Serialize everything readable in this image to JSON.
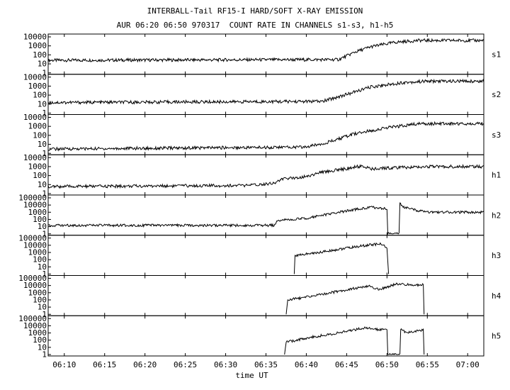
{
  "title_line1": "INTERBALL-Tail RF15-I HARD/SOFT X-RAY EMISSION",
  "title_line2": "AUR 06:20 06:50 970317  COUNT RATE IN CHANNELS s1-s3, h1-h5",
  "chart_data": {
    "type": "line",
    "title": "INTERBALL-Tail RF15-I HARD/SOFT X-RAY EMISSION",
    "subtitle": "AUR 06:20 06:50 970317  COUNT RATE IN CHANNELS s1-s3, h1-h5",
    "xlabel": "time UT",
    "x_ticks": [
      "06:10",
      "06:15",
      "06:20",
      "06:25",
      "06:30",
      "06:35",
      "06:40",
      "06:45",
      "06:50",
      "06:55",
      "07:00"
    ],
    "xlim": [
      "06:08",
      "07:02"
    ],
    "yscale": "log",
    "panels": [
      {
        "name": "s1",
        "y_ticks": [
          "10000",
          "1000",
          "100",
          "10",
          "1"
        ],
        "ylim": [
          1,
          10000
        ],
        "points": [
          [
            "06:08",
            25
          ],
          [
            "06:44",
            30
          ],
          [
            "06:46",
            200
          ],
          [
            "06:48",
            800
          ],
          [
            "06:51",
            2500
          ],
          [
            "06:54",
            4000
          ],
          [
            "07:02",
            4000
          ]
        ]
      },
      {
        "name": "s2",
        "y_ticks": [
          "10000",
          "1000",
          "100",
          "10",
          "1"
        ],
        "ylim": [
          1,
          10000
        ],
        "points": [
          [
            "06:08",
            15
          ],
          [
            "06:42",
            20
          ],
          [
            "06:45",
            120
          ],
          [
            "06:48",
            800
          ],
          [
            "06:52",
            2500
          ],
          [
            "06:55",
            3500
          ],
          [
            "07:02",
            3500
          ]
        ]
      },
      {
        "name": "s3",
        "y_ticks": [
          "10000",
          "1000",
          "100",
          "10",
          "1"
        ],
        "ylim": [
          1,
          10000
        ],
        "points": [
          [
            "06:08",
            3
          ],
          [
            "06:40",
            5
          ],
          [
            "06:43",
            20
          ],
          [
            "06:46",
            150
          ],
          [
            "06:50",
            700
          ],
          [
            "06:54",
            2000
          ],
          [
            "07:02",
            2000
          ]
        ]
      },
      {
        "name": "h1",
        "y_ticks": [
          "10000",
          "1000",
          "100",
          "10",
          "1"
        ],
        "ylim": [
          1,
          10000
        ],
        "points": [
          [
            "06:08",
            6
          ],
          [
            "06:33",
            8
          ],
          [
            "06:36",
            15
          ],
          [
            "06:37",
            40
          ],
          [
            "06:40",
            80
          ],
          [
            "06:42",
            250
          ],
          [
            "06:45",
            600
          ],
          [
            "06:47",
            1200
          ],
          [
            "06:48",
            500
          ],
          [
            "06:50",
            700
          ],
          [
            "06:55",
            1000
          ],
          [
            "07:02",
            1000
          ]
        ]
      },
      {
        "name": "h2",
        "y_ticks": [
          "100000",
          "10000",
          "1000",
          "100",
          "10",
          "1"
        ],
        "ylim": [
          1,
          100000
        ],
        "points": [
          [
            "06:08",
            15
          ],
          [
            "06:36",
            15
          ],
          [
            "06:36.5",
            70
          ],
          [
            "06:40",
            150
          ],
          [
            "06:45",
            1500
          ],
          [
            "06:48",
            5000
          ],
          [
            "06:50",
            3000
          ],
          [
            "06:50.1",
            1
          ],
          [
            "06:51.5",
            1
          ],
          [
            "06:51.6",
            20000
          ],
          [
            "06:52",
            5000
          ],
          [
            "06:54",
            1500
          ],
          [
            "06:55",
            1000
          ],
          [
            "07:02",
            1000
          ]
        ]
      },
      {
        "name": "h3",
        "y_ticks": [
          "100000",
          "10000",
          "1000",
          "100",
          "10",
          "1"
        ],
        "ylim": [
          1,
          100000
        ],
        "points": [
          [
            "06:38.5",
            1
          ],
          [
            "06:38.6",
            400
          ],
          [
            "06:41",
            800
          ],
          [
            "06:45",
            4000
          ],
          [
            "06:48",
            12000
          ],
          [
            "06:49.5",
            15000
          ],
          [
            "06:50",
            3000
          ],
          [
            "06:50.2",
            1
          ]
        ]
      },
      {
        "name": "h4",
        "y_ticks": [
          "100000",
          "10000",
          "1000",
          "100",
          "10",
          "1"
        ],
        "ylim": [
          1,
          100000
        ],
        "points": [
          [
            "06:37.5",
            1
          ],
          [
            "06:37.7",
            100
          ],
          [
            "06:40",
            250
          ],
          [
            "06:43",
            1000
          ],
          [
            "06:46",
            4000
          ],
          [
            "06:48",
            8000
          ],
          [
            "06:49",
            2500
          ],
          [
            "06:51",
            15000
          ],
          [
            "06:54",
            12000
          ],
          [
            "06:54.5",
            12000
          ],
          [
            "06:54.6",
            1
          ]
        ]
      },
      {
        "name": "h5",
        "y_ticks": [
          "100000",
          "10000",
          "1000",
          "100",
          "10",
          "1"
        ],
        "ylim": [
          1,
          100000
        ],
        "points": [
          [
            "06:37.3",
            1
          ],
          [
            "06:37.5",
            50
          ],
          [
            "06:40",
            200
          ],
          [
            "06:44",
            1000
          ],
          [
            "06:47",
            5000
          ],
          [
            "06:49",
            3000
          ],
          [
            "06:50",
            4000
          ],
          [
            "06:50.1",
            1
          ],
          [
            "06:51.6",
            1
          ],
          [
            "06:51.7",
            3000
          ],
          [
            "06:52.5",
            1000
          ],
          [
            "06:54",
            2500
          ],
          [
            "06:54.5",
            2500
          ],
          [
            "06:54.6",
            1
          ]
        ]
      }
    ]
  }
}
